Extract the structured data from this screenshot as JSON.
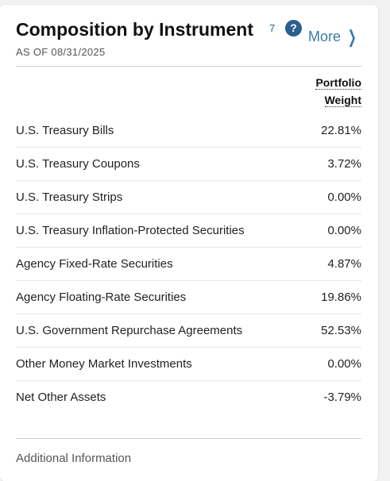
{
  "title": "Composition by Instrument",
  "footnote": "7",
  "help_icon": "?",
  "more_label": "More",
  "as_of": "AS OF 08/31/2025",
  "column_header": {
    "line1": "Portfolio",
    "line2": "Weight"
  },
  "rows": [
    {
      "label": "U.S. Treasury Bills",
      "value": "22.81%"
    },
    {
      "label": "U.S. Treasury Coupons",
      "value": "3.72%"
    },
    {
      "label": "U.S. Treasury Strips",
      "value": "0.00%"
    },
    {
      "label": "U.S. Treasury Inflation-Protected Securities",
      "value": "0.00%"
    },
    {
      "label": "Agency Fixed-Rate Securities",
      "value": "4.87%"
    },
    {
      "label": "Agency Floating-Rate Securities",
      "value": "19.86%"
    },
    {
      "label": "U.S. Government Repurchase Agreements",
      "value": "52.53%"
    },
    {
      "label": "Other Money Market Investments",
      "value": "0.00%"
    },
    {
      "label": "Net Other Assets",
      "value": "-3.79%"
    }
  ],
  "additional_info_label": "Additional Information",
  "colors": {
    "accent": "#2b5f8f",
    "link": "#3a7aae"
  }
}
